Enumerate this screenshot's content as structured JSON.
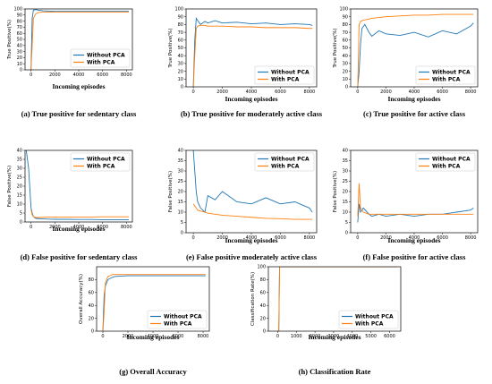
{
  "colors": {
    "without": "#1f77b4",
    "with": "#ff7f0e"
  },
  "chart_data": [
    {
      "type": "line",
      "caption": "(a) True positive for sedentary class",
      "xlabel": "Incoming episodes",
      "ylabel": "True Positive(%)",
      "xlim": [
        -500,
        8500
      ],
      "ylim": [
        0,
        100
      ],
      "xticks": [
        0,
        2000,
        4000,
        6000,
        8000
      ],
      "yticks": [
        0,
        10,
        20,
        30,
        40,
        50,
        60,
        70,
        80,
        90,
        100
      ],
      "legend": "bottom-right",
      "series": [
        {
          "name": "Without PCA",
          "x": [
            0,
            100,
            200,
            400,
            600,
            1000,
            2000,
            3000,
            4000,
            5000,
            6000,
            7000,
            8000,
            8200
          ],
          "y": [
            0,
            85,
            98,
            99,
            98,
            97,
            96,
            96,
            96,
            96,
            96,
            96,
            96,
            96
          ]
        },
        {
          "name": "With PCA",
          "x": [
            0,
            100,
            200,
            400,
            600,
            1000,
            2000,
            3000,
            4000,
            5000,
            6000,
            7000,
            8000,
            8200
          ],
          "y": [
            0,
            40,
            85,
            92,
            94,
            95,
            95,
            95,
            95,
            95,
            95,
            95,
            95,
            95
          ]
        }
      ]
    },
    {
      "type": "line",
      "caption": "(b) True positive for moderately active class",
      "xlabel": "Incoming episodes",
      "ylabel": "True Positive(%)",
      "xlim": [
        -500,
        8500
      ],
      "ylim": [
        0,
        100
      ],
      "xticks": [
        0,
        2000,
        4000,
        6000,
        8000
      ],
      "yticks": [
        0,
        10,
        20,
        30,
        40,
        50,
        60,
        70,
        80,
        90,
        100
      ],
      "legend": "bottom-right",
      "series": [
        {
          "name": "Without PCA",
          "x": [
            0,
            100,
            200,
            300,
            500,
            800,
            1000,
            1500,
            2000,
            3000,
            4000,
            5000,
            6000,
            7000,
            8000,
            8200
          ],
          "y": [
            0,
            60,
            88,
            85,
            80,
            84,
            82,
            85,
            82,
            83,
            81,
            82,
            80,
            81,
            80,
            79
          ]
        },
        {
          "name": "With PCA",
          "x": [
            0,
            100,
            200,
            300,
            500,
            800,
            1000,
            1500,
            2000,
            3000,
            4000,
            5000,
            6000,
            7000,
            8000,
            8200
          ],
          "y": [
            0,
            40,
            75,
            78,
            79,
            79,
            78,
            78,
            78,
            77,
            77,
            76,
            76,
            76,
            75,
            75
          ]
        }
      ]
    },
    {
      "type": "line",
      "caption": "(c) True positive for active class",
      "xlabel": "Incoming episodes",
      "ylabel": "True Positive(%)",
      "xlim": [
        -500,
        8500
      ],
      "ylim": [
        0,
        100
      ],
      "xticks": [
        0,
        2000,
        4000,
        6000,
        8000
      ],
      "yticks": [
        0,
        10,
        20,
        30,
        40,
        50,
        60,
        70,
        80,
        90,
        100
      ],
      "legend": "bottom-right",
      "series": [
        {
          "name": "Without PCA",
          "x": [
            0,
            100,
            200,
            300,
            500,
            800,
            1000,
            1500,
            2000,
            3000,
            4000,
            5000,
            6000,
            7000,
            8000,
            8200
          ],
          "y": [
            0,
            20,
            55,
            75,
            80,
            70,
            65,
            72,
            68,
            66,
            70,
            64,
            72,
            68,
            78,
            82
          ]
        },
        {
          "name": "With PCA",
          "x": [
            0,
            100,
            200,
            300,
            500,
            800,
            1000,
            1500,
            2000,
            3000,
            4000,
            5000,
            6000,
            7000,
            8000,
            8200
          ],
          "y": [
            0,
            80,
            84,
            85,
            86,
            87,
            88,
            89,
            90,
            91,
            92,
            92,
            93,
            93,
            93,
            93
          ]
        }
      ]
    },
    {
      "type": "line",
      "caption": "(d) False positive for sedentary class",
      "xlabel": "Incoming episodes",
      "ylabel": "False Positive(%)",
      "xlim": [
        -500,
        8500
      ],
      "ylim": [
        0,
        40
      ],
      "xticks": [
        0,
        2000,
        4000,
        6000,
        8000
      ],
      "yticks": [
        0,
        5,
        10,
        15,
        20,
        25,
        30,
        35,
        40
      ],
      "legend": "top-right",
      "series": [
        {
          "name": "Without PCA",
          "x": [
            -400,
            -200,
            0,
            100,
            200,
            400,
            800,
            1500,
            2000,
            3000,
            4000,
            5000,
            6000,
            7000,
            8000,
            8200
          ],
          "y": [
            40,
            30,
            8,
            5,
            3,
            2,
            1.8,
            1.6,
            1.5,
            1.5,
            1.4,
            1.4,
            1.3,
            1.3,
            1.3,
            1.3
          ]
        },
        {
          "name": "With PCA",
          "x": [
            0,
            100,
            200,
            400,
            800,
            1500,
            2000,
            3000,
            4000,
            5000,
            6000,
            7000,
            8000,
            8200
          ],
          "y": [
            7,
            4,
            3,
            2.5,
            2.5,
            2.8,
            2.8,
            2.8,
            2.8,
            2.8,
            2.9,
            2.9,
            2.9,
            2.9
          ]
        }
      ]
    },
    {
      "type": "line",
      "caption": "(e) False positive moderately active class",
      "xlabel": "Incoming episodes",
      "ylabel": "False Positive(%)",
      "xlim": [
        -500,
        8500
      ],
      "ylim": [
        0,
        40
      ],
      "xticks": [
        0,
        2000,
        4000,
        6000,
        8000
      ],
      "yticks": [
        0,
        5,
        10,
        15,
        20,
        25,
        30,
        35,
        40
      ],
      "legend": "top-right",
      "series": [
        {
          "name": "Without PCA",
          "x": [
            0,
            100,
            200,
            300,
            500,
            800,
            1000,
            1500,
            2000,
            3000,
            4000,
            5000,
            6000,
            7000,
            8000,
            8200
          ],
          "y": [
            40,
            30,
            20,
            15,
            12,
            10,
            18,
            16,
            20,
            15,
            14,
            17,
            14,
            15,
            12,
            10
          ]
        },
        {
          "name": "With PCA",
          "x": [
            0,
            100,
            200,
            300,
            500,
            800,
            1000,
            1500,
            2000,
            3000,
            4000,
            5000,
            6000,
            7000,
            8000,
            8200
          ],
          "y": [
            14,
            13,
            12,
            11,
            10.5,
            10,
            9.5,
            9,
            8.5,
            8,
            7.5,
            7,
            6.8,
            6.5,
            6.5,
            6.5
          ]
        }
      ]
    },
    {
      "type": "line",
      "caption": "(f) False positive for active class",
      "xlabel": "Incoming episodes",
      "ylabel": "False Positive(%)",
      "xlim": [
        -500,
        8500
      ],
      "ylim": [
        0,
        40
      ],
      "xticks": [
        0,
        2000,
        4000,
        6000,
        8000
      ],
      "yticks": [
        0,
        5,
        10,
        15,
        20,
        25,
        30,
        35,
        40
      ],
      "legend": "top-right",
      "series": [
        {
          "name": "Without PCA",
          "x": [
            0,
            100,
            200,
            400,
            800,
            1000,
            1500,
            2000,
            3000,
            4000,
            5000,
            6000,
            7000,
            8000,
            8200
          ],
          "y": [
            5,
            14,
            10,
            12,
            9,
            8,
            9,
            8,
            9,
            8,
            9,
            9,
            10,
            11,
            12
          ]
        },
        {
          "name": "With PCA",
          "x": [
            0,
            100,
            200,
            400,
            800,
            1000,
            1500,
            2000,
            3000,
            4000,
            5000,
            6000,
            7000,
            8000,
            8200
          ],
          "y": [
            8,
            24,
            12,
            10,
            9,
            9,
            9,
            9,
            9,
            9,
            9,
            9,
            9,
            9,
            9
          ]
        }
      ]
    },
    {
      "type": "line",
      "caption": "(g) Overall Accuracy",
      "xlabel": "Incoming episodes",
      "ylabel": "Overall Accuracy(%)",
      "xlim": [
        -500,
        8500
      ],
      "ylim": [
        0,
        100
      ],
      "xticks": [
        0,
        2000,
        4000,
        6000,
        8000
      ],
      "yticks": [
        0,
        20,
        40,
        60,
        80
      ],
      "legend": "bottom-right",
      "series": [
        {
          "name": "Without PCA",
          "x": [
            0,
            100,
            200,
            400,
            800,
            1000,
            2000,
            3000,
            4000,
            5000,
            6000,
            7000,
            8000,
            8200
          ],
          "y": [
            0,
            55,
            70,
            80,
            84,
            85,
            86,
            86,
            86,
            86,
            86,
            86,
            86,
            86
          ]
        },
        {
          "name": "With PCA",
          "x": [
            0,
            100,
            200,
            400,
            800,
            1000,
            2000,
            3000,
            4000,
            5000,
            6000,
            7000,
            8000,
            8200
          ],
          "y": [
            0,
            30,
            75,
            85,
            88,
            88,
            88,
            88,
            88,
            88,
            88,
            88,
            88,
            88
          ]
        }
      ]
    },
    {
      "type": "line",
      "caption": "(h) Classification Rate",
      "xlabel": "Incoming episodes",
      "ylabel": "Classification Rate(%)",
      "xlim": [
        -500,
        6600
      ],
      "ylim": [
        0,
        100
      ],
      "xticks": [
        0,
        1000,
        2000,
        3000,
        4000,
        5000,
        6000
      ],
      "yticks": [
        0,
        20,
        40,
        60,
        80,
        100
      ],
      "legend": "bottom-right",
      "series": [
        {
          "name": "Without PCA",
          "x": [
            0,
            60,
            100,
            6400
          ],
          "y": [
            0,
            0,
            100,
            100
          ]
        },
        {
          "name": "With PCA",
          "x": [
            0,
            60,
            100,
            6400
          ],
          "y": [
            0,
            0,
            100,
            100
          ]
        }
      ]
    }
  ]
}
